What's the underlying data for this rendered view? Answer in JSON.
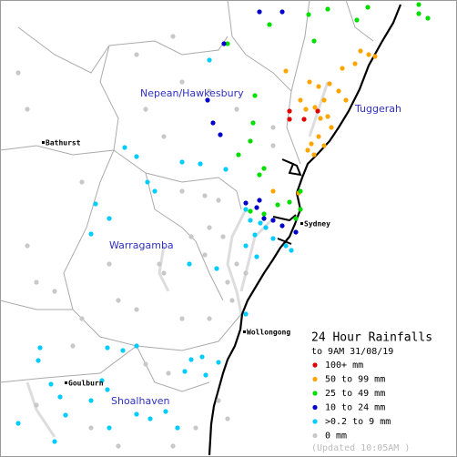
{
  "map": {
    "places": [
      {
        "label": "Nepean/Hawkesbury",
        "kind": "catchment"
      },
      {
        "label": "Tuggerah",
        "kind": "catchment"
      },
      {
        "label": "Warragamba",
        "kind": "catchment"
      },
      {
        "label": "Shoalhaven",
        "kind": "catchment"
      },
      {
        "label": "Bathurst",
        "kind": "town"
      },
      {
        "label": "Sydney",
        "kind": "town"
      },
      {
        "label": "Wollongong",
        "kind": "town"
      },
      {
        "label": "Goulburn",
        "kind": "town"
      }
    ],
    "legend": {
      "title": "24 Hour Rainfalls",
      "subtitle": "to 9AM 31/08/19",
      "items": [
        {
          "label": "100+ mm",
          "color": "#e00000"
        },
        {
          "label": "50  to 99 mm",
          "color": "#ffa500"
        },
        {
          "label": "25  to 49 mm",
          "color": "#00dd00"
        },
        {
          "label": "10  to 24 mm",
          "color": "#0000cc"
        },
        {
          ">label": null,
          "label": ">0.2 to 9 mm",
          "color": "#00ccff"
        },
        {
          "label": "0 mm",
          "color": "#c8c8c8"
        }
      ]
    },
    "updated": "(Updated 10:05AM  )"
  }
}
